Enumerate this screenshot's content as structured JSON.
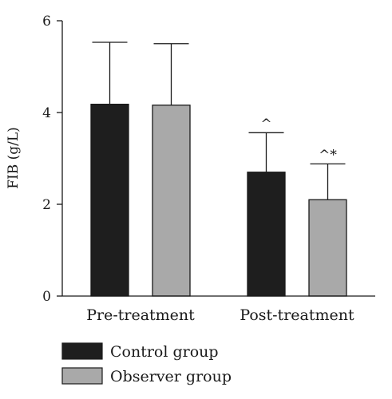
{
  "chart_data": {
    "type": "bar",
    "ylabel": "FIB (g/L)",
    "ylim": [
      0,
      6
    ],
    "yticks": [
      "0",
      "2",
      "4",
      "6"
    ],
    "grid": false,
    "legend_placement": "bottom-left",
    "categories": [
      "Pre-treatment",
      "Post-treatment"
    ],
    "series": [
      {
        "name": "Control group",
        "color": "#1e1e1e",
        "values": [
          4.18,
          2.7
        ],
        "error": [
          1.35,
          0.86
        ],
        "annotations": [
          "",
          "^"
        ]
      },
      {
        "name": "Observer group",
        "color": "#a9a9a9",
        "values": [
          4.16,
          2.1
        ],
        "error": [
          1.34,
          0.78
        ],
        "annotations": [
          "",
          "^*"
        ]
      }
    ]
  }
}
